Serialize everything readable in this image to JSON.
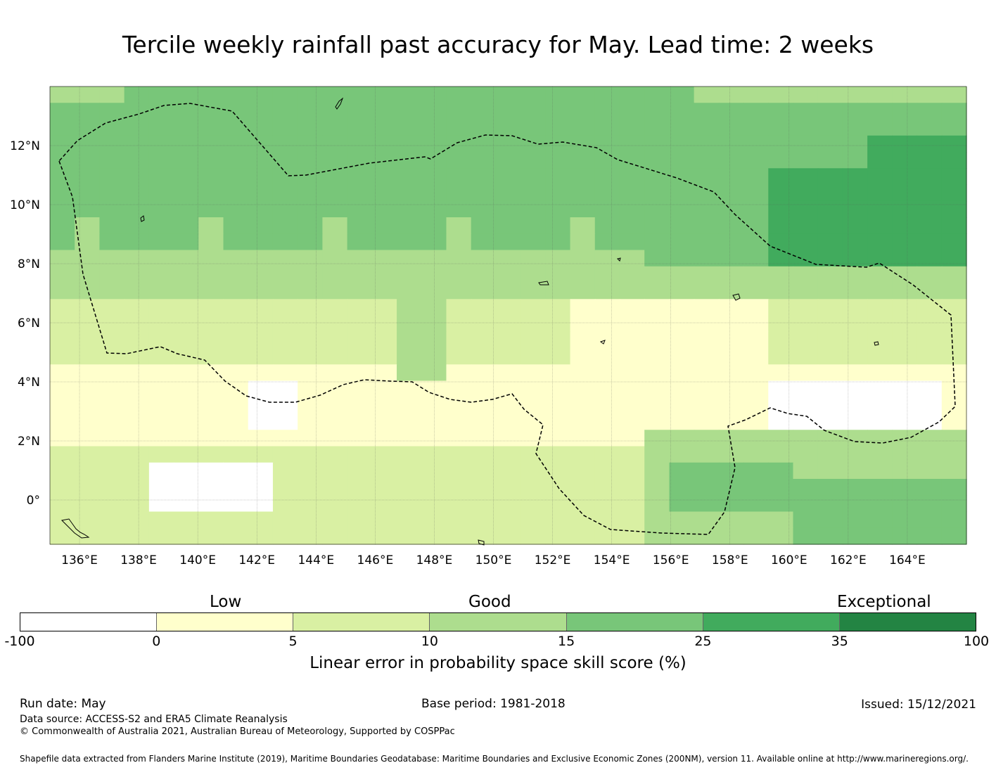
{
  "title": "Tercile weekly rainfall past accuracy for May. Lead time: 2 weeks",
  "map": {
    "lon_range": [
      135,
      166
    ],
    "lat_range": [
      -1.5,
      14
    ],
    "lon_ticks": [
      "136°E",
      "138°E",
      "140°E",
      "142°E",
      "144°E",
      "146°E",
      "148°E",
      "150°E",
      "152°E",
      "154°E",
      "156°E",
      "158°E",
      "160°E",
      "162°E",
      "164°E"
    ],
    "lat_ticks": [
      "12°N",
      "10°N",
      "8°N",
      "6°N",
      "4°N",
      "2°N",
      "0°"
    ],
    "grid": true,
    "eez_boundary": "dashed black line"
  },
  "colorbar": {
    "categories": [
      "Low",
      "Good",
      "Exceptional"
    ],
    "bounds": [
      "-100",
      "0",
      "5",
      "10",
      "15",
      "25",
      "35",
      "100"
    ],
    "colors": [
      "#ffffff",
      "#ffffcc",
      "#d9f0a3",
      "#addd8e",
      "#78c679",
      "#41ab5d",
      "#238443"
    ],
    "label": "Linear error in probability space skill score (%)"
  },
  "footer": {
    "run_date": "Run date: May",
    "base_period": "Base period: 1981-2018",
    "issued": "Issued: 15/12/2021",
    "data_source": "Data source: ACCESS-S2 and ERA5 Climate Reanalysis",
    "copyright": "© Commonwealth of Australia 2021, Australian Bureau of Meteorology, Supported by COSPPac",
    "shapefile": "Shapefile data extracted from Flanders Marine Institute (2019), Maritime Boundaries Geodatabase: Maritime Boundaries and Exclusive Economic Zones (200NM), version 11. Available online at http://www.marineregions.org/."
  }
}
